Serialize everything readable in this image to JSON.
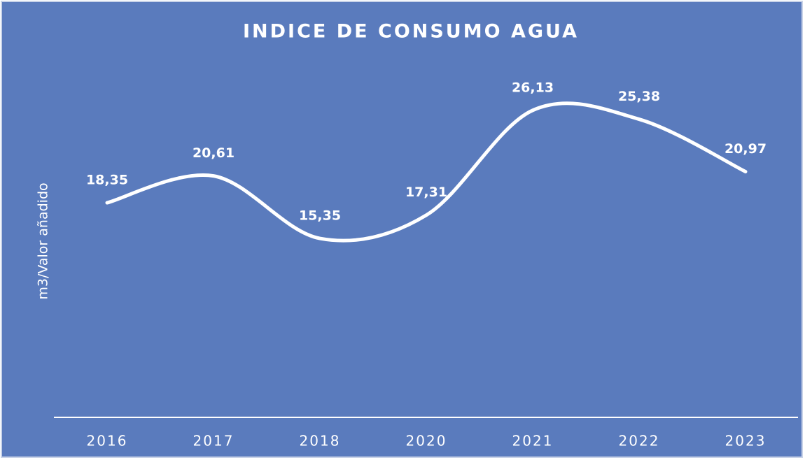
{
  "chart_data": {
    "type": "line",
    "title": "INDICE DE CONSUMO AGUA",
    "y_label": "m3/Valor añadido",
    "categories": [
      "2016",
      "2017",
      "2018",
      "2020",
      "2021",
      "2022",
      "2023"
    ],
    "values": [
      18.35,
      20.61,
      15.35,
      17.31,
      26.13,
      25.38,
      20.97
    ],
    "value_labels": [
      "18,35",
      "20,61",
      "15,35",
      "17,31",
      "26,13",
      "25,38",
      "20,97"
    ],
    "color": "#ffffff",
    "background": "#5a7bbd",
    "ylim": [
      0,
      30
    ],
    "grid": false,
    "smooth": true
  }
}
